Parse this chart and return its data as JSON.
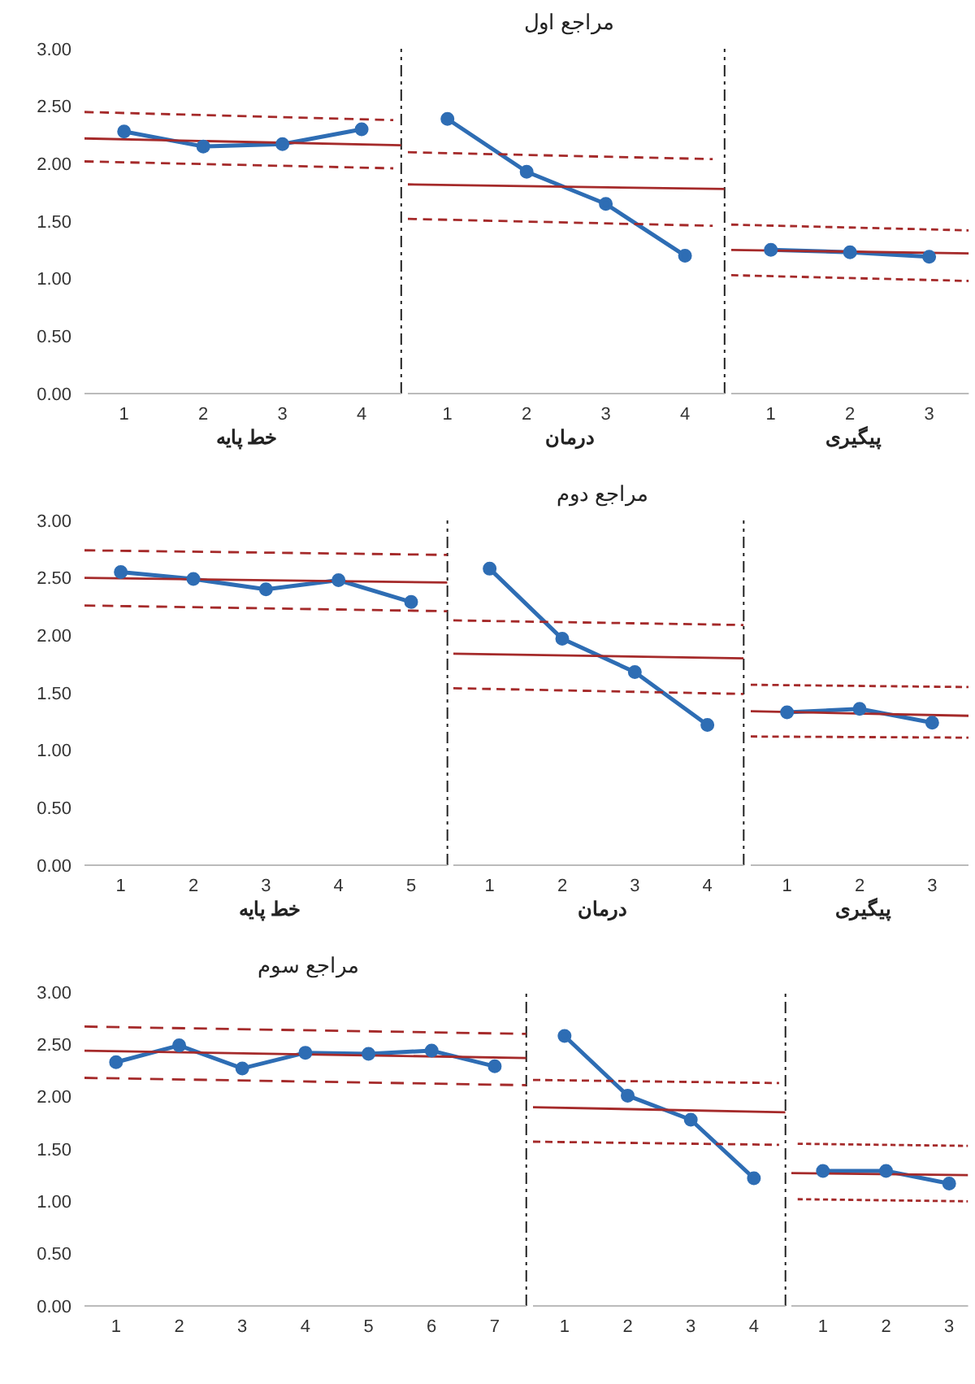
{
  "chart_data": [
    {
      "type": "line",
      "xlabel": "خط پایه",
      "x": [
        1,
        2,
        3,
        4
      ],
      "xlim": [
        0.5,
        4.5
      ],
      "xticks": [
        1,
        2,
        3,
        4
      ],
      "ylim": [
        0,
        3
      ],
      "yticks": [
        {
          "value": 0,
          "label": "0.00"
        },
        {
          "value": 0.5,
          "label": "0.50"
        },
        {
          "value": 1,
          "label": "1.00"
        },
        {
          "value": 1.5,
          "label": "1.50"
        },
        {
          "value": 2,
          "label": "2.00"
        },
        {
          "value": 2.5,
          "label": "2.50"
        },
        {
          "value": 3,
          "label": "3.00"
        }
      ],
      "marker": "circle",
      "line_style": "solid",
      "ref_lines": [
        {
          "axis": "x",
          "value": 4.5,
          "color": "#222222",
          "line_style": "dashed"
        }
      ],
      "series": [
        {
          "color": "#2e6db4",
          "values": [
            2.28,
            2.15,
            2.17,
            2.3
          ]
        },
        {
          "color": "#a52a2a",
          "marker": "none",
          "x": [
            0.5,
            4.5
          ],
          "values": [
            2.22,
            2.16
          ]
        },
        {
          "color": "#a52a2a",
          "marker": "none",
          "line_style": "dashed",
          "x": [
            0.5,
            4.4
          ],
          "values": [
            2.45,
            2.38
          ]
        },
        {
          "color": "#a52a2a",
          "marker": "none",
          "line_style": "dashed",
          "x": [
            0.5,
            4.4
          ],
          "values": [
            2.02,
            1.96
          ]
        }
      ]
    },
    {
      "type": "line",
      "title": "مراجع اول",
      "xlabel": "درمان",
      "x": [
        1,
        2,
        3,
        4
      ],
      "xlim": [
        0.5,
        4.5
      ],
      "xticks": [
        1,
        2,
        3,
        4
      ],
      "ylim": [
        0,
        3
      ],
      "tick_labels": "x",
      "marker": "circle",
      "line_style": "solid",
      "ref_lines": [
        {
          "axis": "x",
          "value": 4.5,
          "color": "#222222",
          "line_style": "dashed"
        }
      ],
      "series": [
        {
          "color": "#2e6db4",
          "values": [
            2.39,
            1.93,
            1.65,
            1.2
          ]
        },
        {
          "color": "#a52a2a",
          "marker": "none",
          "x": [
            0.5,
            4.5
          ],
          "values": [
            1.82,
            1.78
          ]
        },
        {
          "color": "#a52a2a",
          "marker": "none",
          "line_style": "dashed",
          "x": [
            0.5,
            4.35
          ],
          "values": [
            2.1,
            2.04
          ]
        },
        {
          "color": "#a52a2a",
          "marker": "none",
          "line_style": "dashed",
          "x": [
            0.5,
            4.35
          ],
          "values": [
            1.52,
            1.46
          ]
        }
      ]
    },
    {
      "type": "line",
      "xlabel": "پیگیری",
      "x": [
        1,
        2,
        3
      ],
      "xlim": [
        0.5,
        3.5
      ],
      "xticks": [
        1,
        2,
        3
      ],
      "ylim": [
        0,
        3
      ],
      "tick_labels": "x",
      "marker": "circle",
      "line_style": "solid",
      "series": [
        {
          "color": "#2e6db4",
          "values": [
            1.25,
            1.23,
            1.19
          ]
        },
        {
          "color": "#a52a2a",
          "marker": "none",
          "x": [
            0.5,
            3.5
          ],
          "values": [
            1.25,
            1.22
          ]
        },
        {
          "color": "#a52a2a",
          "marker": "none",
          "line_style": "dashed",
          "x": [
            0.5,
            3.5
          ],
          "values": [
            1.47,
            1.42
          ]
        },
        {
          "color": "#a52a2a",
          "marker": "none",
          "line_style": "dashed",
          "x": [
            0.5,
            3.5
          ],
          "values": [
            1.03,
            0.98
          ]
        }
      ]
    },
    {
      "type": "line",
      "xlabel": "خط پایه",
      "x": [
        1,
        2,
        3,
        4,
        5
      ],
      "xlim": [
        0.5,
        5.5
      ],
      "xticks": [
        1,
        2,
        3,
        4,
        5
      ],
      "ylim": [
        0,
        3
      ],
      "yticks": [
        {
          "value": 0,
          "label": "0.00"
        },
        {
          "value": 0.5,
          "label": "0.50"
        },
        {
          "value": 1,
          "label": "1.00"
        },
        {
          "value": 1.5,
          "label": "1.50"
        },
        {
          "value": 2,
          "label": "2.00"
        },
        {
          "value": 2.5,
          "label": "2.50"
        },
        {
          "value": 3,
          "label": "3.00"
        }
      ],
      "marker": "circle",
      "line_style": "solid",
      "ref_lines": [
        {
          "axis": "x",
          "value": 5.5,
          "color": "#222222",
          "line_style": "dashed"
        }
      ],
      "series": [
        {
          "color": "#2e6db4",
          "values": [
            2.55,
            2.49,
            2.4,
            2.48,
            2.29
          ]
        },
        {
          "color": "#a52a2a",
          "marker": "none",
          "x": [
            0.5,
            5.5
          ],
          "values": [
            2.5,
            2.46
          ]
        },
        {
          "color": "#a52a2a",
          "marker": "none",
          "line_style": "dashed",
          "x": [
            0.5,
            5.5
          ],
          "values": [
            2.74,
            2.7
          ]
        },
        {
          "color": "#a52a2a",
          "marker": "none",
          "line_style": "dashed",
          "x": [
            0.5,
            5.5
          ],
          "values": [
            2.26,
            2.21
          ]
        }
      ]
    },
    {
      "type": "line",
      "title": "مراجع دوم",
      "xlabel": "درمان",
      "x": [
        1,
        2,
        3,
        4
      ],
      "xlim": [
        0.5,
        4.5
      ],
      "xticks": [
        1,
        2,
        3,
        4
      ],
      "ylim": [
        0,
        3
      ],
      "tick_labels": "x",
      "marker": "circle",
      "line_style": "solid",
      "ref_lines": [
        {
          "axis": "x",
          "value": 4.5,
          "color": "#222222",
          "line_style": "dashed"
        }
      ],
      "series": [
        {
          "color": "#2e6db4",
          "values": [
            2.58,
            1.97,
            1.68,
            1.22
          ]
        },
        {
          "color": "#a52a2a",
          "marker": "none",
          "x": [
            0.5,
            4.5
          ],
          "values": [
            1.84,
            1.8
          ]
        },
        {
          "color": "#a52a2a",
          "marker": "none",
          "line_style": "dashed",
          "x": [
            0.5,
            4.5
          ],
          "values": [
            2.13,
            2.09
          ]
        },
        {
          "color": "#a52a2a",
          "marker": "none",
          "line_style": "dashed",
          "x": [
            0.5,
            4.5
          ],
          "values": [
            1.54,
            1.49
          ]
        }
      ]
    },
    {
      "type": "line",
      "xlabel": "پیگیری",
      "x": [
        1,
        2,
        3
      ],
      "xlim": [
        0.5,
        3.5
      ],
      "xticks": [
        1,
        2,
        3
      ],
      "ylim": [
        0,
        3
      ],
      "tick_labels": "x",
      "marker": "circle",
      "line_style": "solid",
      "series": [
        {
          "color": "#2e6db4",
          "values": [
            1.33,
            1.36,
            1.24
          ]
        },
        {
          "color": "#a52a2a",
          "marker": "none",
          "x": [
            0.5,
            3.5
          ],
          "values": [
            1.34,
            1.3
          ]
        },
        {
          "color": "#a52a2a",
          "marker": "none",
          "line_style": "dashed",
          "x": [
            0.5,
            3.5
          ],
          "values": [
            1.57,
            1.55
          ]
        },
        {
          "color": "#a52a2a",
          "marker": "none",
          "line_style": "dashed",
          "x": [
            0.5,
            3.5
          ],
          "values": [
            1.12,
            1.11
          ]
        }
      ]
    },
    {
      "type": "line",
      "title": "مراجع سوم",
      "x": [
        1,
        2,
        3,
        4,
        5,
        6,
        7
      ],
      "xlim": [
        0.5,
        7.5
      ],
      "xticks": [
        1,
        2,
        3,
        4,
        5,
        6,
        7
      ],
      "ylim": [
        0,
        3
      ],
      "yticks": [
        {
          "value": 0,
          "label": "0.00"
        },
        {
          "value": 0.5,
          "label": "0.50"
        },
        {
          "value": 1,
          "label": "1.00"
        },
        {
          "value": 1.5,
          "label": "1.50"
        },
        {
          "value": 2,
          "label": "2.00"
        },
        {
          "value": 2.5,
          "label": "2.50"
        },
        {
          "value": 3,
          "label": "3.00"
        }
      ],
      "marker": "circle",
      "line_style": "solid",
      "ref_lines": [
        {
          "axis": "x",
          "value": 7.5,
          "color": "#222222",
          "line_style": "dashed"
        }
      ],
      "series": [
        {
          "color": "#2e6db4",
          "values": [
            2.33,
            2.49,
            2.27,
            2.42,
            2.41,
            2.44,
            2.29
          ]
        },
        {
          "color": "#a52a2a",
          "marker": "none",
          "x": [
            0.5,
            7.5
          ],
          "values": [
            2.44,
            2.37
          ]
        },
        {
          "color": "#a52a2a",
          "marker": "none",
          "line_style": "dashed",
          "x": [
            0.5,
            7.5
          ],
          "values": [
            2.67,
            2.6
          ]
        },
        {
          "color": "#a52a2a",
          "marker": "none",
          "line_style": "dashed",
          "x": [
            0.5,
            7.5
          ],
          "values": [
            2.18,
            2.11
          ]
        }
      ]
    },
    {
      "type": "line",
      "x": [
        1,
        2,
        3,
        4
      ],
      "xlim": [
        0.5,
        4.5
      ],
      "xticks": [
        1,
        2,
        3,
        4
      ],
      "ylim": [
        0,
        3
      ],
      "tick_labels": "x",
      "marker": "circle",
      "line_style": "solid",
      "ref_lines": [
        {
          "axis": "x",
          "value": 4.5,
          "color": "#222222",
          "line_style": "dashed"
        }
      ],
      "series": [
        {
          "color": "#2e6db4",
          "values": [
            2.58,
            2.01,
            1.78,
            1.22
          ]
        },
        {
          "color": "#a52a2a",
          "marker": "none",
          "x": [
            0.5,
            4.5
          ],
          "values": [
            1.9,
            1.85
          ]
        },
        {
          "color": "#a52a2a",
          "marker": "none",
          "line_style": "dashed",
          "x": [
            0.5,
            4.4
          ],
          "values": [
            2.16,
            2.13
          ]
        },
        {
          "color": "#a52a2a",
          "marker": "none",
          "line_style": "dashed",
          "x": [
            0.5,
            4.4
          ],
          "values": [
            1.57,
            1.54
          ]
        }
      ]
    },
    {
      "type": "line",
      "x": [
        1,
        2,
        3
      ],
      "xlim": [
        0.5,
        3.3
      ],
      "xticks": [
        1,
        2,
        3
      ],
      "ylim": [
        0,
        3
      ],
      "tick_labels": "x",
      "marker": "circle",
      "line_style": "solid",
      "series": [
        {
          "color": "#2e6db4",
          "values": [
            1.29,
            1.29,
            1.17
          ]
        },
        {
          "color": "#a52a2a",
          "marker": "none",
          "x": [
            0.5,
            3.3
          ],
          "values": [
            1.27,
            1.25
          ]
        },
        {
          "color": "#a52a2a",
          "marker": "none",
          "line_style": "dashed",
          "x": [
            0.6,
            3.3
          ],
          "values": [
            1.55,
            1.53
          ]
        },
        {
          "color": "#a52a2a",
          "marker": "none",
          "line_style": "dashed",
          "x": [
            0.6,
            3.3
          ],
          "values": [
            1.02,
            1.0
          ]
        }
      ]
    }
  ]
}
